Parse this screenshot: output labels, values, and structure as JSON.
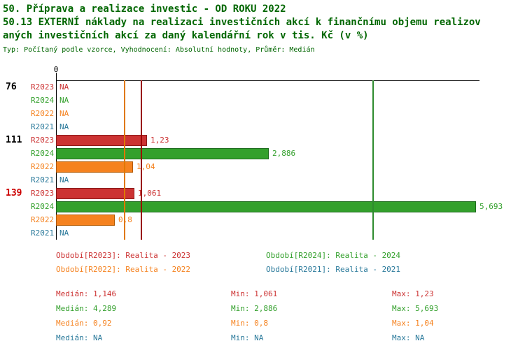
{
  "title": {
    "line1": "50. Příprava a realizace investic - OD ROKU 2022",
    "line2": "50.13 EXTERNÍ náklady na realizaci investičních akcí k finančnímu objemu realizov",
    "line3": "aných investičních akcí za daný kalendářní rok v tis. Kč (v %)",
    "meta": "Typ: Počítaný podle vzorce, Vyhodnocení: Absolutní hodnoty, Průměr: Medián"
  },
  "colors": {
    "title_green": "#006600",
    "axis": "#000000",
    "group_label": "#000000",
    "group_label_highlight": "#CC0000",
    "background": "#FFFFFF"
  },
  "chart_data": {
    "type": "bar",
    "orientation": "horizontal",
    "title": "50.13 EXTERNÍ náklady na realizaci investičních akcí k finančnímu objemu realizovaných investičních akcí za daný kalendářní rok v tis. Kč (v %)",
    "xlabel": "",
    "ylabel": "",
    "xlim": [
      0,
      5.95
    ],
    "grid": false,
    "legend_position": "bottom",
    "origin_tick_label": "0",
    "series": [
      {
        "key": "R2023",
        "name": "Realita - 2023",
        "color": "#CC3333",
        "border": "#8B1A1A",
        "line": "#990000"
      },
      {
        "key": "R2024",
        "name": "Realita - 2024",
        "color": "#33A02C",
        "border": "#1E6B1E",
        "line": "#2E8B2E"
      },
      {
        "key": "R2022",
        "name": "Realita - 2022",
        "color": "#F5821F",
        "border": "#B35900",
        "line": "#E07800"
      },
      {
        "key": "R2021",
        "name": "Realita - 2021",
        "color": "#2B7A9B",
        "border": "#1D5E7A",
        "line": "#2B7A9B"
      }
    ],
    "groups": [
      {
        "label": "76",
        "highlight": false,
        "bars": [
          {
            "series": "R2023",
            "value": null,
            "display": "NA"
          },
          {
            "series": "R2024",
            "value": null,
            "display": "NA"
          },
          {
            "series": "R2022",
            "value": null,
            "display": "NA"
          },
          {
            "series": "R2021",
            "value": null,
            "display": "NA"
          }
        ]
      },
      {
        "label": "111",
        "highlight": false,
        "bars": [
          {
            "series": "R2023",
            "value": 1.23,
            "display": "1,23"
          },
          {
            "series": "R2024",
            "value": 2.886,
            "display": "2,886"
          },
          {
            "series": "R2022",
            "value": 1.04,
            "display": "1,04"
          },
          {
            "series": "R2021",
            "value": null,
            "display": "NA"
          }
        ]
      },
      {
        "label": "139",
        "highlight": true,
        "bars": [
          {
            "series": "R2023",
            "value": 1.061,
            "display": "1,061"
          },
          {
            "series": "R2024",
            "value": 5.693,
            "display": "5,693"
          },
          {
            "series": "R2022",
            "value": 0.8,
            "display": "0,8"
          },
          {
            "series": "R2021",
            "value": null,
            "display": "NA"
          }
        ]
      }
    ],
    "median_lines": [
      {
        "series": "R2022",
        "value": 0.92
      },
      {
        "series": "R2023",
        "value": 1.146
      },
      {
        "series": "R2024",
        "value": 4.289
      }
    ]
  },
  "legend": {
    "items": [
      {
        "series": "R2023",
        "text": "Období[R2023]: Realita - 2023"
      },
      {
        "series": "R2024",
        "text": "Období[R2024]: Realita - 2024"
      },
      {
        "series": "R2022",
        "text": "Období[R2022]: Realita - 2022"
      },
      {
        "series": "R2021",
        "text": "Období[R2021]: Realita - 2021"
      }
    ]
  },
  "stats": {
    "labels": {
      "median": "Medián",
      "min": "Min",
      "max": "Max"
    },
    "rows": [
      {
        "series": "R2023",
        "median": "1,146",
        "min": "1,061",
        "max": "1,23"
      },
      {
        "series": "R2024",
        "median": "4,289",
        "min": "2,886",
        "max": "5,693"
      },
      {
        "series": "R2022",
        "median": "0,92",
        "min": "0,8",
        "max": "1,04"
      },
      {
        "series": "R2021",
        "median": "NA",
        "min": "NA",
        "max": "NA"
      }
    ]
  }
}
